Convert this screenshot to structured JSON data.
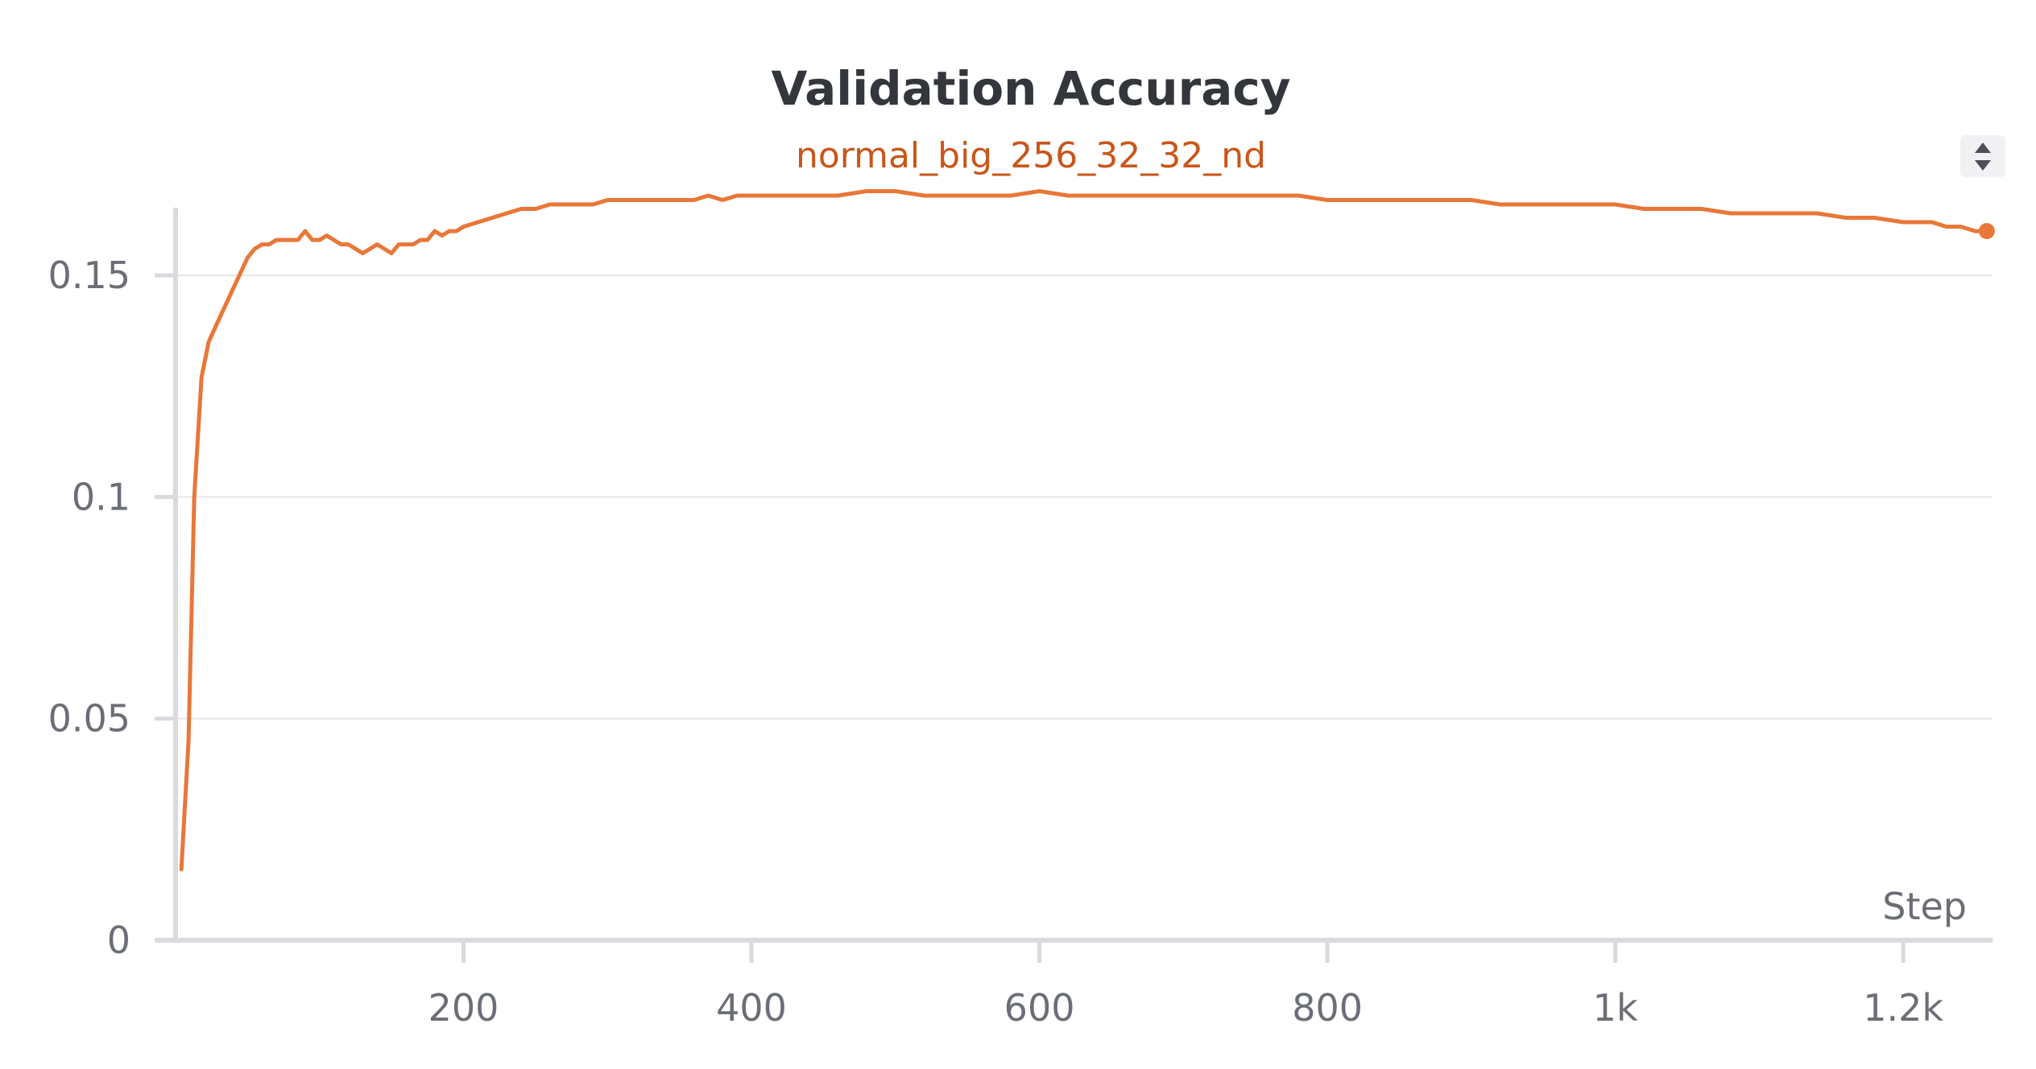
{
  "colors": {
    "series": "#e87738",
    "title": "#33363b",
    "subtitle": "#c8561a",
    "tick": "#6b6e76"
  },
  "controls": {
    "sort_icon": "sort-up-down-icon"
  },
  "chart_data": {
    "type": "line",
    "title": "Validation Accuracy",
    "subtitle": "normal_big_256_32_32_nd",
    "xlabel": "Step",
    "ylabel": "",
    "xlim": [
      0,
      1262
    ],
    "ylim": [
      0,
      0.17
    ],
    "grid": true,
    "x_ticks": [
      {
        "value": 200,
        "label": "200"
      },
      {
        "value": 400,
        "label": "400"
      },
      {
        "value": 600,
        "label": "600"
      },
      {
        "value": 800,
        "label": "800"
      },
      {
        "value": 1000,
        "label": "1k"
      },
      {
        "value": 1200,
        "label": "1.2k"
      }
    ],
    "y_ticks": [
      {
        "value": 0,
        "label": "0"
      },
      {
        "value": 0.05,
        "label": "0.05"
      },
      {
        "value": 0.1,
        "label": "0.1"
      },
      {
        "value": 0.15,
        "label": "0.15"
      }
    ],
    "series": [
      {
        "name": "normal_big_256_32_32_nd",
        "end_marker": true,
        "x": [
          4,
          9,
          13,
          18,
          23,
          30,
          40,
          50,
          55,
          60,
          65,
          70,
          75,
          80,
          85,
          90,
          95,
          100,
          105,
          110,
          115,
          120,
          125,
          130,
          135,
          140,
          145,
          150,
          155,
          160,
          165,
          170,
          175,
          180,
          185,
          190,
          195,
          200,
          210,
          220,
          230,
          240,
          250,
          260,
          270,
          280,
          290,
          300,
          310,
          320,
          330,
          340,
          350,
          360,
          370,
          380,
          390,
          400,
          420,
          440,
          460,
          480,
          500,
          520,
          540,
          560,
          580,
          600,
          620,
          640,
          660,
          680,
          700,
          720,
          740,
          760,
          780,
          800,
          820,
          840,
          860,
          880,
          900,
          920,
          940,
          960,
          980,
          1000,
          1020,
          1040,
          1060,
          1080,
          1100,
          1120,
          1140,
          1160,
          1180,
          1200,
          1210,
          1220,
          1230,
          1240,
          1250,
          1258
        ],
        "y": [
          0.016,
          0.045,
          0.1,
          0.127,
          0.135,
          0.14,
          0.147,
          0.154,
          0.156,
          0.157,
          0.157,
          0.158,
          0.158,
          0.158,
          0.158,
          0.16,
          0.158,
          0.158,
          0.159,
          0.158,
          0.157,
          0.157,
          0.156,
          0.155,
          0.156,
          0.157,
          0.156,
          0.155,
          0.157,
          0.157,
          0.157,
          0.158,
          0.158,
          0.16,
          0.159,
          0.16,
          0.16,
          0.161,
          0.162,
          0.163,
          0.164,
          0.165,
          0.165,
          0.166,
          0.166,
          0.166,
          0.166,
          0.167,
          0.167,
          0.167,
          0.167,
          0.167,
          0.167,
          0.167,
          0.168,
          0.167,
          0.168,
          0.168,
          0.168,
          0.168,
          0.168,
          0.169,
          0.169,
          0.168,
          0.168,
          0.168,
          0.168,
          0.169,
          0.168,
          0.168,
          0.168,
          0.168,
          0.168,
          0.168,
          0.168,
          0.168,
          0.168,
          0.167,
          0.167,
          0.167,
          0.167,
          0.167,
          0.167,
          0.166,
          0.166,
          0.166,
          0.166,
          0.166,
          0.165,
          0.165,
          0.165,
          0.164,
          0.164,
          0.164,
          0.164,
          0.163,
          0.163,
          0.162,
          0.162,
          0.162,
          0.161,
          0.161,
          0.16,
          0.16
        ]
      }
    ]
  }
}
